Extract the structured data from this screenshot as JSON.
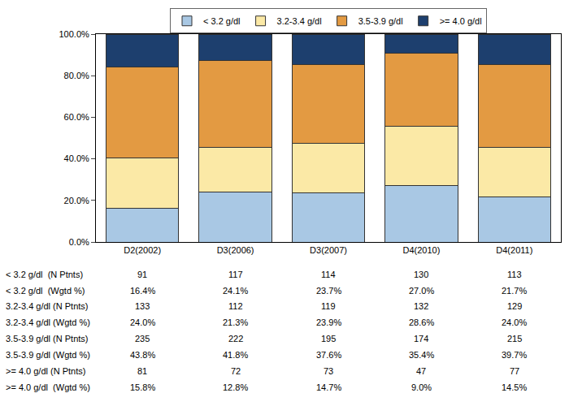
{
  "chart_data": {
    "type": "bar",
    "stacked": true,
    "grid": false,
    "legend": "top",
    "categories": [
      "D2(2002)",
      "D3(2006)",
      "D3(2007)",
      "D4(2010)",
      "D4(2011)"
    ],
    "ylim": [
      0,
      100
    ],
    "yticks": [
      {
        "value": 0,
        "label": "0.0%"
      },
      {
        "value": 20,
        "label": "20.0%"
      },
      {
        "value": 40,
        "label": "40.0%"
      },
      {
        "value": 60,
        "label": "60.0%"
      },
      {
        "value": 80,
        "label": "80.0%"
      },
      {
        "value": 100,
        "label": "100.0%"
      }
    ],
    "series": [
      {
        "name": "< 3.2 g/dl",
        "color": "#a9c8e4",
        "values": [
          16.4,
          24.1,
          23.7,
          27.0,
          21.7
        ],
        "value_labels": [
          "16.4%",
          "24.1%",
          "23.7%",
          "27.0%",
          "21.7%"
        ],
        "counts": [
          91,
          117,
          114,
          130,
          113
        ],
        "count_row_label": "< 3.2 g/dl  (N Ptnts)",
        "value_row_label": "< 3.2 g/dl  (Wgtd %)"
      },
      {
        "name": "3.2-3.4 g/dl",
        "color": "#fbe9a6",
        "values": [
          24.0,
          21.3,
          23.9,
          28.6,
          24.0
        ],
        "value_labels": [
          "24.0%",
          "21.3%",
          "23.9%",
          "28.6%",
          "24.0%"
        ],
        "counts": [
          133,
          112,
          119,
          132,
          129
        ],
        "count_row_label": "3.2-3.4 g/dl (N Ptnts)",
        "value_row_label": "3.2-3.4 g/dl (Wgtd %)"
      },
      {
        "name": "3.5-3.9 g/dl",
        "color": "#e39a42",
        "values": [
          43.8,
          41.8,
          37.6,
          35.4,
          39.7
        ],
        "value_labels": [
          "43.8%",
          "41.8%",
          "37.6%",
          "35.4%",
          "39.7%"
        ],
        "counts": [
          235,
          222,
          195,
          174,
          215
        ],
        "count_row_label": "3.5-3.9 g/dl (N Ptnts)",
        "value_row_label": "3.5-3.9 g/dl (Wgtd %)"
      },
      {
        "name": ">= 4.0 g/dl",
        "color": "#1d3f6e",
        "values": [
          15.8,
          12.8,
          14.7,
          9.0,
          14.5
        ],
        "value_labels": [
          "15.8%",
          "12.8%",
          "14.7%",
          "9.0%",
          "14.5%"
        ],
        "counts": [
          81,
          72,
          73,
          47,
          77
        ],
        "count_row_label": ">= 4.0 g/dl (N Ptnts)",
        "value_row_label": ">= 4.0 g/dl  (Wgtd %)"
      }
    ]
  }
}
